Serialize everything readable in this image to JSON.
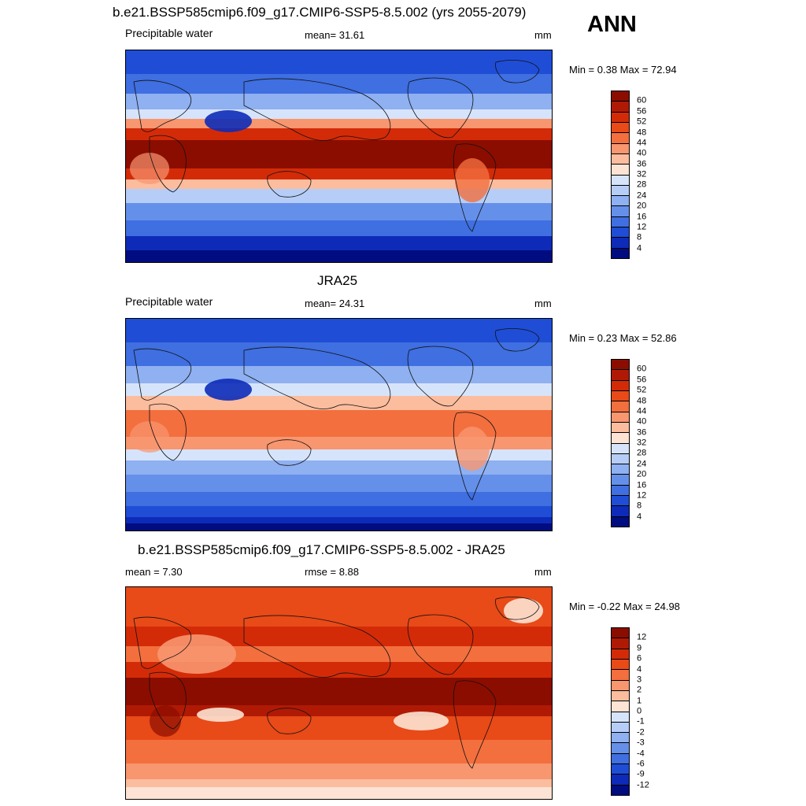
{
  "header": {
    "title": "b.e21.BSSP585cmip6.f09_g17.CMIP6-SSP5-8.5.002 (yrs 2055-2079)",
    "season": "ANN"
  },
  "panels": [
    {
      "id": "model",
      "left_label": "Precipitable water",
      "center_label": "mean=  31.61",
      "units": "mm",
      "minmax": "Min =   0.38 Max =  72.94",
      "colorbar_ticks": [
        "60",
        "56",
        "52",
        "48",
        "44",
        "40",
        "36",
        "32",
        "28",
        "24",
        "20",
        "16",
        "12",
        "8",
        "4"
      ],
      "colorbar_colors": [
        "#8b0d00",
        "#b01a05",
        "#d32b08",
        "#e84a18",
        "#f36f3e",
        "#f89670",
        "#fbbd9e",
        "#fde3d3",
        "#d6e4fb",
        "#b6cdf7",
        "#8fb0f1",
        "#6590ea",
        "#3f6fe0",
        "#1f4dd6",
        "#0d2bb8",
        "#000c7f"
      ],
      "field_type": "absolute"
    },
    {
      "id": "obs",
      "title": "JRA25",
      "left_label": "Precipitable water",
      "center_label": "mean=  24.31",
      "units": "mm",
      "minmax": "Min =   0.23 Max =  52.86",
      "colorbar_ticks": [
        "60",
        "56",
        "52",
        "48",
        "44",
        "40",
        "36",
        "32",
        "28",
        "24",
        "20",
        "16",
        "12",
        "8",
        "4"
      ],
      "colorbar_colors": [
        "#8b0d00",
        "#b01a05",
        "#d32b08",
        "#e84a18",
        "#f36f3e",
        "#f89670",
        "#fbbd9e",
        "#fde3d3",
        "#d6e4fb",
        "#b6cdf7",
        "#8fb0f1",
        "#6590ea",
        "#3f6fe0",
        "#1f4dd6",
        "#0d2bb8",
        "#000c7f"
      ],
      "field_type": "absolute"
    },
    {
      "id": "diff",
      "title": "b.e21.BSSP585cmip6.f09_g17.CMIP6-SSP5-8.5.002 - JRA25",
      "left_label": "mean =   7.30",
      "center_label": "rmse =   8.88",
      "units": "mm",
      "minmax": "Min =  -0.22 Max =  24.98",
      "colorbar_ticks": [
        "12",
        "9",
        "6",
        "4",
        "3",
        "2",
        "1",
        "0",
        "-1",
        "-2",
        "-3",
        "-4",
        "-6",
        "-9",
        "-12"
      ],
      "colorbar_colors": [
        "#8b0d00",
        "#b01a05",
        "#d32b08",
        "#e84a18",
        "#f36f3e",
        "#f89670",
        "#fbbd9e",
        "#fde3d3",
        "#d6e4fb",
        "#b6cdf7",
        "#8fb0f1",
        "#6590ea",
        "#3f6fe0",
        "#1f4dd6",
        "#0d2bb8",
        "#000c7f"
      ],
      "field_type": "difference"
    }
  ]
}
